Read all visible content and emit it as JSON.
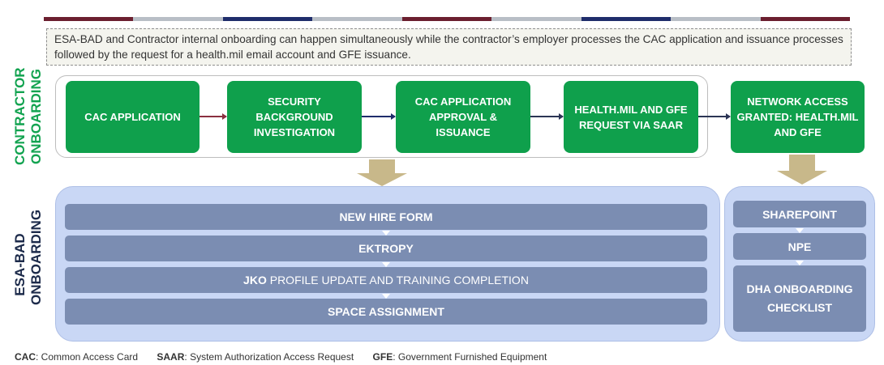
{
  "top_bar_colors": [
    "#6b1f2f",
    "#b8bec6",
    "#1f2d6b",
    "#b8bec6",
    "#6b1f2f",
    "#b8bec6",
    "#1f2d6b",
    "#b8bec6",
    "#6b1f2f"
  ],
  "intro_text": "ESA-BAD and Contractor internal onboarding can happen simultaneously while the contractor’s employer processes the CAC application and issuance processes followed by the request for a health.mil email account and GFE issuance.",
  "contractor": {
    "label_line1": "CONTRACTOR",
    "label_line2": "ONBOARDING",
    "steps": [
      "CAC APPLICATION",
      "SECURITY BACKGROUND INVESTIGATION",
      "CAC APPLICATION APPROVAL & ISSUANCE",
      "HEALTH.MIL AND GFE REQUEST VIA SAAR",
      "NETWORK ACCESS GRANTED: HEALTH.MIL AND GFE"
    ]
  },
  "esabad": {
    "label_line1": "ESA-BAD",
    "label_line2": "ONBOARDING",
    "left_steps": {
      "new_hire": "NEW HIRE FORM",
      "ektropy": "EKTROPY",
      "jko_bold": "JKO",
      "jko_rest": " PROFILE UPDATE AND TRAINING COMPLETION",
      "space": "SPACE ASSIGNMENT"
    },
    "right_steps": [
      "SHAREPOINT",
      "NPE",
      "DHA ONBOARDING CHECKLIST"
    ]
  },
  "footer": {
    "cac_abbr": "CAC",
    "cac_def": ": Common Access Card",
    "saar_abbr": "SAAR",
    "saar_def": ": System Authorization Access Request",
    "gfe_abbr": "GFE",
    "gfe_def": ": Government Furnished Equipment"
  },
  "colors": {
    "green_box": "#0fa04c",
    "green_label": "#12a350",
    "navy_label": "#1c2a4a",
    "panel_fill": "#c9d7f5",
    "bar_fill": "#7b8db2",
    "big_arrow": "#c8b88a"
  }
}
